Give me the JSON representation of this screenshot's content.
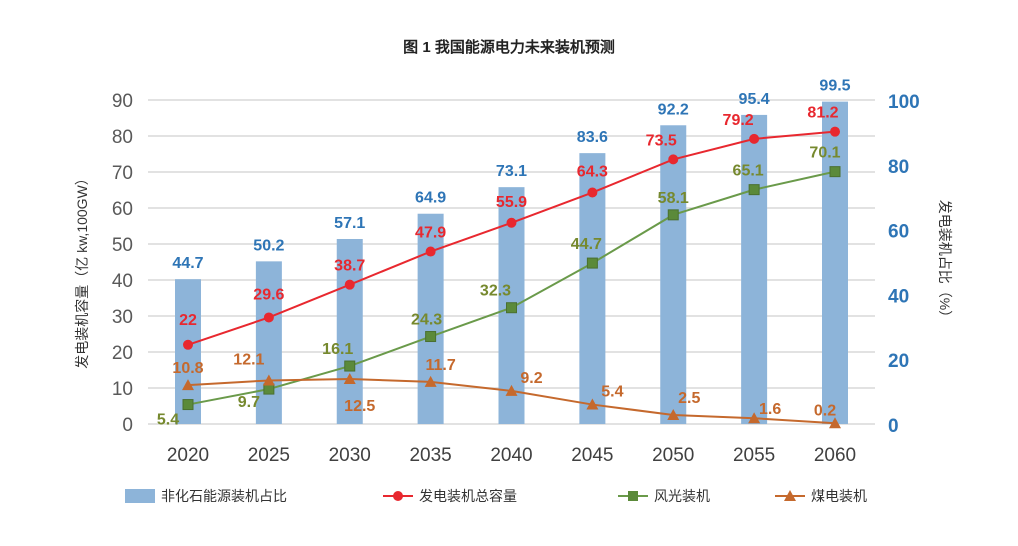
{
  "chart_data": {
    "type": "bar+line",
    "title": "图 1 我国能源电力未来装机预测",
    "categories": [
      "2020",
      "2025",
      "2030",
      "2035",
      "2040",
      "2045",
      "2050",
      "2055",
      "2060"
    ],
    "ylabel_left": "发电装机容量（亿 kw,100GW）",
    "ylabel_right": "发电装机占比（%）",
    "ylim_left": [
      0,
      90
    ],
    "yticks_left": [
      0,
      10,
      20,
      30,
      40,
      50,
      60,
      70,
      80,
      90
    ],
    "ylim_right": [
      0,
      100
    ],
    "yticks_right": [
      0,
      20,
      40,
      60,
      80,
      100
    ],
    "grid": true,
    "legend_position": "bottom",
    "series": [
      {
        "name": "非化石能源装机占比",
        "type": "bar",
        "axis": "right",
        "color": "#8db4d9",
        "label_color": "#2e75b6",
        "values": [
          44.7,
          50.2,
          57.1,
          64.9,
          73.1,
          83.6,
          92.2,
          95.4,
          99.5
        ]
      },
      {
        "name": "发电装机总容量",
        "type": "line",
        "marker": "circle",
        "axis": "left",
        "color": "#e8282f",
        "label_color": "#e8282f",
        "values": [
          22,
          29.6,
          38.7,
          47.9,
          55.9,
          64.3,
          73.5,
          79.2,
          81.2
        ]
      },
      {
        "name": "风光装机",
        "type": "line",
        "marker": "square",
        "axis": "left",
        "color": "#6a9a4a",
        "label_color": "#76892e",
        "values": [
          5.4,
          9.7,
          16.1,
          24.3,
          32.3,
          44.7,
          58.1,
          65.1,
          70.1
        ]
      },
      {
        "name": "煤电装机",
        "type": "line",
        "marker": "triangle",
        "axis": "left",
        "color": "#c5692d",
        "label_color": "#c5692d",
        "values": [
          10.8,
          12.1,
          12.5,
          11.7,
          9.2,
          5.4,
          2.5,
          1.6,
          0.2
        ]
      }
    ]
  }
}
